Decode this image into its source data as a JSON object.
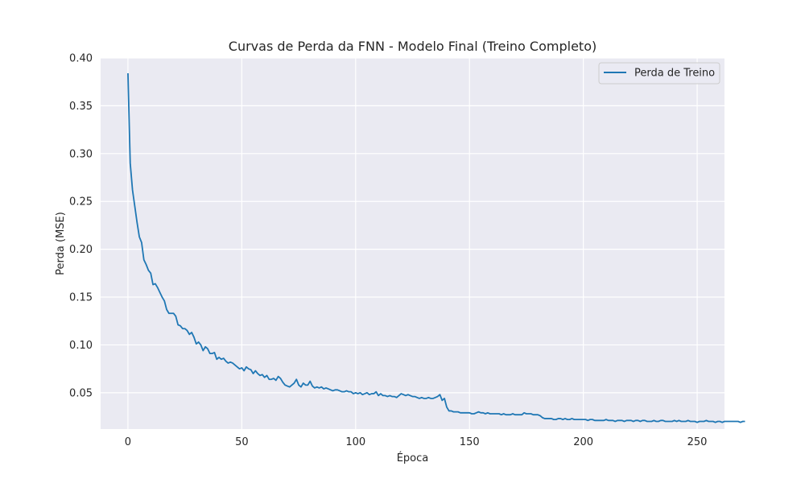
{
  "chart_data": {
    "type": "line",
    "title": "Curvas de Perda da FNN - Modelo Final (Treino Completo)",
    "xlabel": "Época",
    "ylabel": "Perda (MSE)",
    "xlim": [
      -12,
      262
    ],
    "ylim": [
      0.012,
      0.4
    ],
    "xticks": [
      0,
      50,
      100,
      150,
      200,
      250
    ],
    "xtick_labels": [
      "0",
      "50",
      "100",
      "150",
      "200",
      "250"
    ],
    "yticks": [
      0.05,
      0.1,
      0.15,
      0.2,
      0.25,
      0.3,
      0.35,
      0.4
    ],
    "ytick_labels": [
      "0.05",
      "0.10",
      "0.15",
      "0.20",
      "0.25",
      "0.30",
      "0.35",
      "0.40"
    ],
    "grid": true,
    "legend_position": "upper right",
    "colors": {
      "plot_background": "#eaeaf2",
      "grid": "#ffffff",
      "series_1": "#1f77b4"
    },
    "series": [
      {
        "name": "Perda de Treino",
        "color": "#1f77b4",
        "values": [
          0.384,
          0.29,
          0.262,
          0.245,
          0.228,
          0.213,
          0.207,
          0.189,
          0.184,
          0.178,
          0.175,
          0.163,
          0.164,
          0.16,
          0.155,
          0.15,
          0.146,
          0.137,
          0.133,
          0.133,
          0.133,
          0.13,
          0.121,
          0.12,
          0.117,
          0.117,
          0.115,
          0.111,
          0.113,
          0.108,
          0.101,
          0.103,
          0.1,
          0.094,
          0.098,
          0.096,
          0.091,
          0.091,
          0.092,
          0.085,
          0.087,
          0.085,
          0.086,
          0.083,
          0.081,
          0.082,
          0.081,
          0.079,
          0.077,
          0.075,
          0.076,
          0.073,
          0.077,
          0.075,
          0.074,
          0.07,
          0.073,
          0.07,
          0.068,
          0.069,
          0.066,
          0.068,
          0.064,
          0.064,
          0.065,
          0.063,
          0.067,
          0.065,
          0.061,
          0.058,
          0.057,
          0.056,
          0.058,
          0.06,
          0.064,
          0.058,
          0.056,
          0.06,
          0.058,
          0.058,
          0.062,
          0.057,
          0.055,
          0.056,
          0.055,
          0.056,
          0.054,
          0.055,
          0.054,
          0.053,
          0.052,
          0.053,
          0.053,
          0.052,
          0.051,
          0.051,
          0.052,
          0.051,
          0.051,
          0.049,
          0.05,
          0.049,
          0.05,
          0.048,
          0.049,
          0.05,
          0.048,
          0.049,
          0.049,
          0.051,
          0.047,
          0.049,
          0.047,
          0.047,
          0.046,
          0.047,
          0.046,
          0.046,
          0.045,
          0.047,
          0.049,
          0.048,
          0.047,
          0.048,
          0.047,
          0.046,
          0.046,
          0.045,
          0.044,
          0.045,
          0.044,
          0.044,
          0.045,
          0.044,
          0.044,
          0.045,
          0.046,
          0.048,
          0.042,
          0.044,
          0.035,
          0.031,
          0.031,
          0.03,
          0.03,
          0.03,
          0.029,
          0.029,
          0.029,
          0.029,
          0.029,
          0.028,
          0.028,
          0.029,
          0.03,
          0.029,
          0.029,
          0.028,
          0.029,
          0.028,
          0.028,
          0.028,
          0.028,
          0.028,
          0.027,
          0.028,
          0.027,
          0.027,
          0.027,
          0.028,
          0.027,
          0.027,
          0.027,
          0.027,
          0.029,
          0.028,
          0.028,
          0.028,
          0.027,
          0.027,
          0.027,
          0.026,
          0.024,
          0.023,
          0.023,
          0.023,
          0.023,
          0.022,
          0.022,
          0.023,
          0.023,
          0.022,
          0.023,
          0.022,
          0.022,
          0.023,
          0.022,
          0.022,
          0.022,
          0.022,
          0.022,
          0.022,
          0.021,
          0.022,
          0.022,
          0.021,
          0.021,
          0.021,
          0.021,
          0.021,
          0.022,
          0.021,
          0.021,
          0.021,
          0.02,
          0.021,
          0.021,
          0.021,
          0.02,
          0.021,
          0.021,
          0.021,
          0.02,
          0.021,
          0.021,
          0.02,
          0.021,
          0.021,
          0.02,
          0.02,
          0.02,
          0.021,
          0.02,
          0.02,
          0.021,
          0.021,
          0.02,
          0.02,
          0.02,
          0.02,
          0.021,
          0.02,
          0.021,
          0.02,
          0.02,
          0.02,
          0.021,
          0.02,
          0.02,
          0.02,
          0.019,
          0.02,
          0.02,
          0.02,
          0.021,
          0.02,
          0.02,
          0.02,
          0.019,
          0.02,
          0.02,
          0.019,
          0.02,
          0.02,
          0.02,
          0.02,
          0.02,
          0.02,
          0.02,
          0.019,
          0.02,
          0.02
        ]
      }
    ]
  }
}
